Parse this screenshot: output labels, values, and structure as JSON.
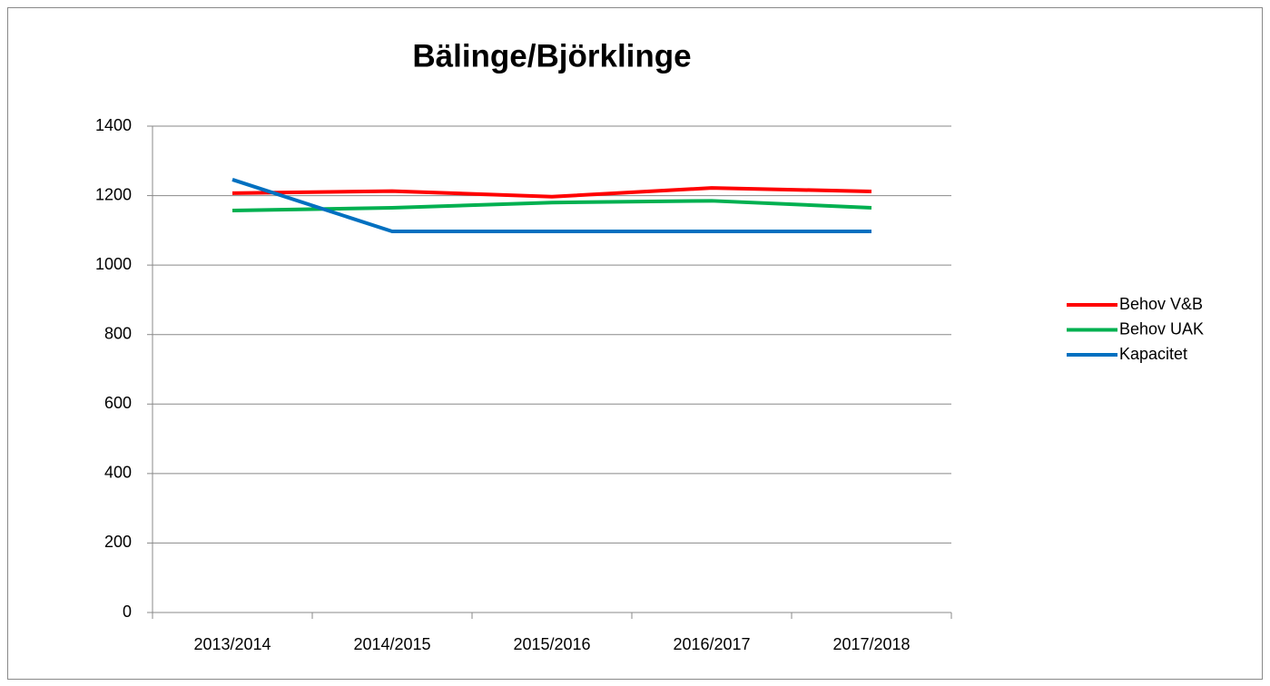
{
  "chart_data": {
    "type": "line",
    "title": "Bälinge/Björklinge",
    "categories": [
      "2013/2014",
      "2014/2015",
      "2015/2016",
      "2016/2017",
      "2017/2018"
    ],
    "series": [
      {
        "name": "Behov V&B",
        "color": "#ff0000",
        "values": [
          1207,
          1213,
          1197,
          1222,
          1212
        ]
      },
      {
        "name": "Behov UAK",
        "color": "#00b050",
        "values": [
          1157,
          1165,
          1180,
          1185,
          1165
        ]
      },
      {
        "name": "Kapacitet",
        "color": "#0070c0",
        "values": [
          1246,
          1097,
          1097,
          1097,
          1097
        ]
      }
    ],
    "ylim": [
      0,
      1400
    ],
    "yticks": [
      0,
      200,
      400,
      600,
      800,
      1000,
      1200,
      1400
    ],
    "grid": true,
    "legend": "right"
  }
}
